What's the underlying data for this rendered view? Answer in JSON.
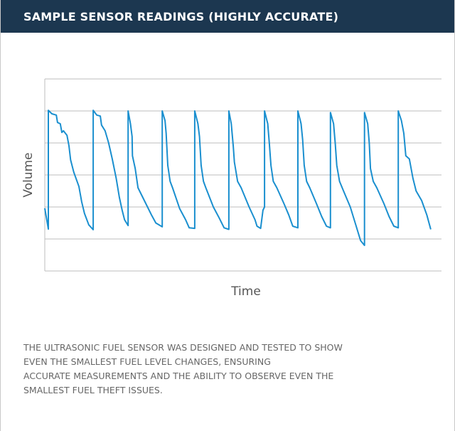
{
  "header": {
    "title": "SAMPLE SENSOR READINGS (HIGHLY ACCURATE)"
  },
  "chart_data": {
    "type": "line",
    "xlabel": "Time",
    "ylabel": "Volume",
    "xlim": [
      0,
      100
    ],
    "ylim": [
      0,
      6
    ],
    "yticks": [
      1,
      2,
      3,
      4,
      5,
      6
    ],
    "grid": true,
    "series": [
      {
        "name": "Volume",
        "color": "#1a8fcf",
        "x": [
          0,
          0.9,
          0.9,
          1.8,
          2.9,
          3.2,
          3.9,
          4.3,
          4.7,
          5.6,
          6.1,
          6.5,
          7.3,
          8.6,
          9.3,
          10.0,
          11.1,
          12.2,
          12.2,
          13.1,
          14.0,
          14.3,
          15.2,
          16.1,
          17.0,
          18.0,
          18.8,
          19.5,
          20.1,
          21.0,
          21.0,
          21.6,
          22.0,
          22.1,
          22.8,
          23.5,
          24.7,
          26.9,
          28.0,
          29.6,
          29.6,
          30.3,
          30.6,
          31.0,
          31.6,
          32.2,
          34.0,
          35.5,
          36.4,
          37.8,
          37.8,
          38.6,
          39.0,
          39.4,
          40.0,
          40.6,
          42.5,
          44.0,
          45.2,
          46.4,
          46.4,
          47.0,
          47.5,
          47.8,
          48.6,
          49.5,
          51.5,
          53.0,
          53.5,
          54.4,
          55.0,
          55.4,
          55.4,
          56.2,
          56.6,
          57.0,
          57.6,
          58.5,
          60.3,
          61.5,
          62.5,
          63.8,
          63.8,
          64.6,
          65.0,
          65.4,
          66.0,
          66.8,
          68.5,
          69.8,
          71.0,
          72.0,
          72.0,
          72.8,
          73.2,
          73.6,
          74.3,
          75.3,
          77.0,
          78.5,
          79.6,
          80.6,
          80.6,
          81.4,
          81.8,
          82.1,
          82.8,
          83.7,
          85.5,
          86.8,
          88.0,
          89.1,
          89.1,
          89.9,
          90.5,
          91.0,
          91.9,
          92.8,
          93.6,
          95.0,
          96.3,
          97.3
        ],
        "values": [
          1.96,
          1.31,
          5.02,
          4.91,
          4.87,
          4.64,
          4.6,
          4.33,
          4.38,
          4.24,
          3.91,
          3.47,
          3.09,
          2.64,
          2.16,
          1.8,
          1.44,
          1.29,
          5.02,
          4.87,
          4.84,
          4.56,
          4.38,
          4.0,
          3.5,
          2.9,
          2.3,
          1.9,
          1.6,
          1.42,
          5.0,
          4.6,
          4.2,
          3.6,
          3.2,
          2.6,
          2.3,
          1.75,
          1.5,
          1.38,
          5.0,
          4.7,
          4.3,
          3.3,
          2.8,
          2.6,
          1.95,
          1.6,
          1.35,
          1.33,
          5.0,
          4.6,
          4.2,
          3.3,
          2.8,
          2.6,
          2.0,
          1.65,
          1.35,
          1.3,
          5.0,
          4.6,
          3.9,
          3.4,
          2.8,
          2.6,
          2.0,
          1.6,
          1.4,
          1.33,
          1.9,
          2.0,
          5.0,
          4.6,
          4.0,
          3.3,
          2.8,
          2.6,
          2.1,
          1.75,
          1.4,
          1.35,
          5.0,
          4.6,
          4.1,
          3.3,
          2.8,
          2.6,
          2.1,
          1.7,
          1.4,
          1.35,
          4.95,
          4.6,
          4.0,
          3.3,
          2.8,
          2.5,
          2.0,
          1.4,
          0.95,
          0.8,
          4.95,
          4.6,
          4.0,
          3.2,
          2.8,
          2.6,
          2.1,
          1.7,
          1.4,
          1.35,
          5.0,
          4.7,
          4.3,
          3.6,
          3.5,
          2.9,
          2.5,
          2.2,
          1.75,
          1.3
        ]
      }
    ]
  },
  "description": {
    "lines": [
      "THE ULTRASONIC FUEL SENSOR WAS DESIGNED AND TESTED TO SHOW",
      "EVEN THE SMALLEST FUEL LEVEL CHANGES, ENSURING",
      "ACCURATE MEASUREMENTS AND THE ABILITY TO OBSERVE EVEN THE",
      "SMALLEST FUEL THEFT ISSUES."
    ]
  }
}
